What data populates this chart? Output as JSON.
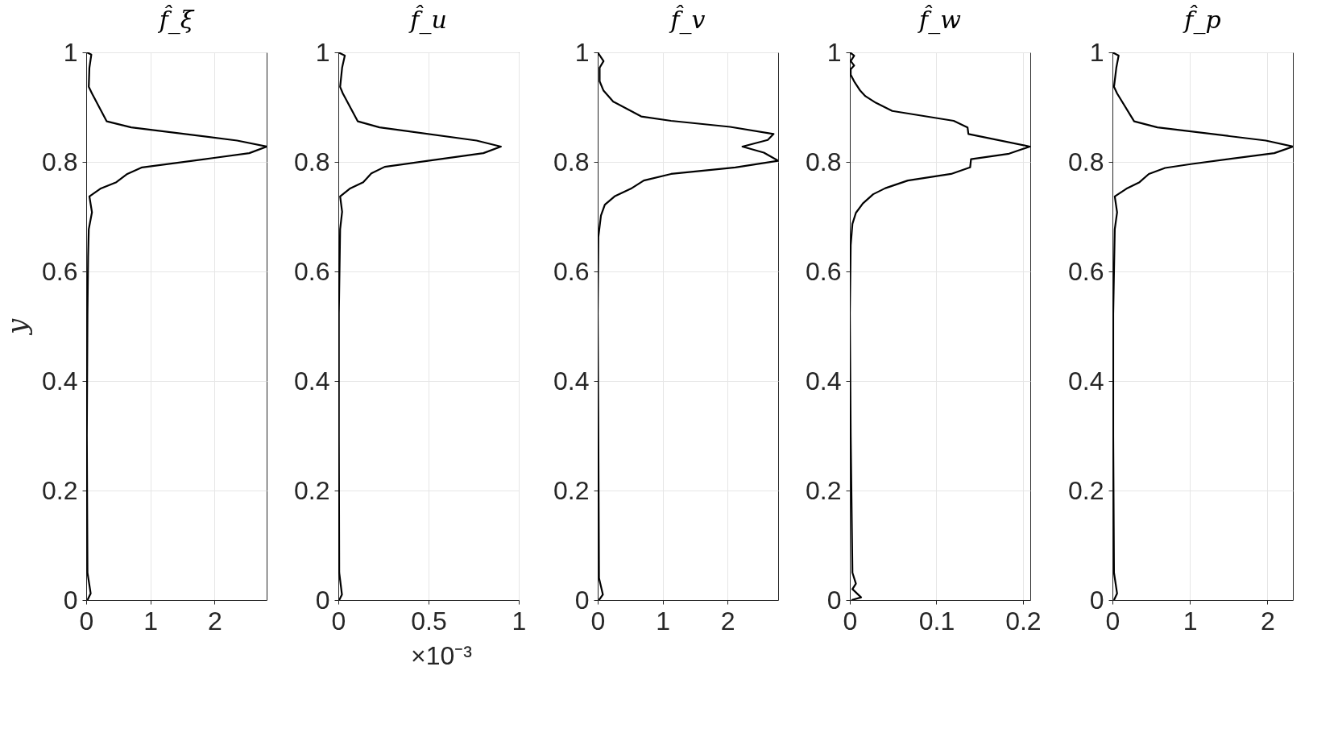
{
  "chart_data": [
    {
      "type": "line",
      "title": "f̂_ξ",
      "ylabel": "y",
      "grid": true,
      "xlim": [
        0,
        2.81
      ],
      "xticks": [
        0,
        1,
        2
      ],
      "ylim": [
        0,
        1
      ],
      "yticks": [
        0,
        0.2,
        0.4,
        0.6,
        0.8,
        1
      ],
      "series": [
        {
          "color": "#000000",
          "x": [
            0.01,
            0.08,
            0.05,
            0.04,
            0.09,
            0.32,
            0.7,
            2.35,
            2.81,
            2.54,
            1.97,
            0.87,
            0.64,
            0.47,
            0.22,
            0.05,
            0.09,
            0.04,
            0.03,
            0.02,
            0.01,
            0.02,
            0.07,
            0.02
          ],
          "values": [
            1.0,
            0.996,
            0.972,
            0.937,
            0.925,
            0.874,
            0.863,
            0.839,
            0.828,
            0.816,
            0.807,
            0.79,
            0.778,
            0.763,
            0.751,
            0.737,
            0.708,
            0.677,
            0.628,
            0.523,
            0.3,
            0.05,
            0.012,
            0.0
          ]
        }
      ]
    },
    {
      "type": "line",
      "title": "f̂_u",
      "grid": true,
      "xlim": [
        0,
        1
      ],
      "xticks": [
        0,
        0.5,
        1
      ],
      "ylim": [
        0,
        1
      ],
      "yticks": [
        0,
        0.2,
        0.4,
        0.6,
        0.8,
        1
      ],
      "annotations": [
        "×10⁻³"
      ],
      "series": [
        {
          "color": "#000000",
          "x": [
            0.0,
            0.036,
            0.021,
            0.01,
            0.025,
            0.108,
            0.228,
            0.766,
            0.901,
            0.804,
            0.497,
            0.257,
            0.183,
            0.138,
            0.063,
            0.01,
            0.021,
            0.01,
            0.003,
            0.003,
            0.005,
            0.02,
            0.005
          ],
          "values": [
            1.0,
            0.994,
            0.972,
            0.937,
            0.925,
            0.874,
            0.863,
            0.839,
            0.828,
            0.816,
            0.802,
            0.791,
            0.779,
            0.763,
            0.751,
            0.737,
            0.709,
            0.677,
            0.523,
            0.3,
            0.05,
            0.01,
            0.0
          ]
        }
      ]
    },
    {
      "type": "line",
      "title": "f̂_v",
      "grid": true,
      "xlim": [
        0,
        2.78
      ],
      "xticks": [
        0,
        1,
        2
      ],
      "ylim": [
        0,
        1
      ],
      "yticks": [
        0,
        0.2,
        0.4,
        0.6,
        0.8,
        1
      ],
      "series": [
        {
          "color": "#000000",
          "x": [
            0.0,
            0.09,
            0.03,
            0.03,
            0.09,
            0.24,
            0.67,
            1.13,
            2.04,
            2.71,
            2.62,
            2.23,
            2.56,
            2.78,
            2.12,
            1.13,
            0.71,
            0.51,
            0.26,
            0.11,
            0.05,
            0.01,
            0.0,
            0.01,
            0.02,
            0.08,
            0.02
          ],
          "values": [
            1.0,
            0.984,
            0.972,
            0.947,
            0.93,
            0.91,
            0.883,
            0.875,
            0.864,
            0.851,
            0.84,
            0.828,
            0.817,
            0.802,
            0.79,
            0.778,
            0.766,
            0.751,
            0.737,
            0.722,
            0.702,
            0.663,
            0.523,
            0.3,
            0.04,
            0.01,
            0.0
          ]
        }
      ]
    },
    {
      "type": "line",
      "title": "f̂_w",
      "grid": true,
      "xlim": [
        0,
        0.2085
      ],
      "xticks": [
        0,
        0.1,
        0.2
      ],
      "ylim": [
        0,
        1
      ],
      "yticks": [
        0,
        0.2,
        0.4,
        0.6,
        0.8,
        1
      ],
      "series": [
        {
          "color": "#000000",
          "x": [
            0.0,
            0.005,
            0.001,
            0.005,
            0.001,
            0.001,
            0.005,
            0.012,
            0.018,
            0.03,
            0.049,
            0.12,
            0.136,
            0.137,
            0.208,
            0.184,
            0.14,
            0.139,
            0.117,
            0.067,
            0.041,
            0.027,
            0.015,
            0.007,
            0.003,
            0.001,
            0.0,
            0.001,
            0.003,
            0.007,
            0.003,
            0.013,
            0.002
          ],
          "values": [
            1.0,
            0.994,
            0.984,
            0.976,
            0.969,
            0.959,
            0.947,
            0.93,
            0.92,
            0.908,
            0.893,
            0.875,
            0.863,
            0.851,
            0.828,
            0.815,
            0.805,
            0.79,
            0.778,
            0.766,
            0.752,
            0.741,
            0.724,
            0.707,
            0.687,
            0.648,
            0.523,
            0.3,
            0.05,
            0.03,
            0.02,
            0.005,
            0.0
          ]
        }
      ]
    },
    {
      "type": "line",
      "title": "f̂_p",
      "grid": true,
      "xlim": [
        0,
        2.33
      ],
      "xticks": [
        0,
        1,
        2
      ],
      "ylim": [
        0,
        1
      ],
      "yticks": [
        0,
        0.2,
        0.4,
        0.6,
        0.8,
        1
      ],
      "series": [
        {
          "color": "#000000",
          "x": [
            0.0,
            0.08,
            0.05,
            0.02,
            0.06,
            0.28,
            0.58,
            1.98,
            2.33,
            2.09,
            1.01,
            0.68,
            0.47,
            0.35,
            0.18,
            0.03,
            0.06,
            0.03,
            0.01,
            0.01,
            0.02,
            0.06,
            0.02
          ],
          "values": [
            1.0,
            0.994,
            0.972,
            0.937,
            0.925,
            0.874,
            0.863,
            0.839,
            0.828,
            0.816,
            0.796,
            0.789,
            0.778,
            0.763,
            0.751,
            0.737,
            0.708,
            0.677,
            0.523,
            0.3,
            0.05,
            0.012,
            0.0
          ]
        }
      ]
    }
  ]
}
